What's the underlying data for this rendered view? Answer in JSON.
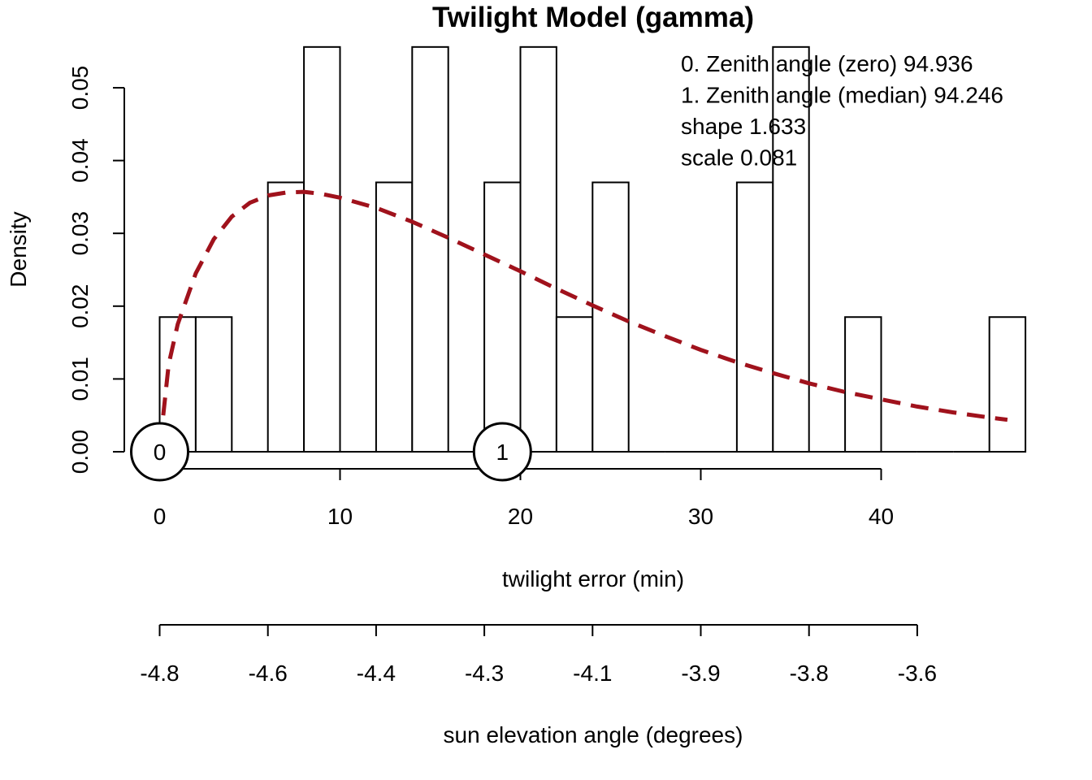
{
  "chart_data": {
    "type": "histogram",
    "title": "Twilight Model (gamma)",
    "ylabel": "Density",
    "xlabel": "twilight error (min)",
    "x2label": "sun elevation angle (degrees)",
    "xlim": [
      -2,
      48
    ],
    "ylim": [
      0,
      0.05
    ],
    "x_ticks": [
      0,
      10,
      20,
      30,
      40
    ],
    "x_tick_labels": [
      "0",
      "10",
      "20",
      "30",
      "40"
    ],
    "y_ticks": [
      0,
      0.01,
      0.02,
      0.03,
      0.04,
      0.05
    ],
    "y_tick_labels": [
      "0.00",
      "0.01",
      "0.02",
      "0.03",
      "0.04",
      "0.05"
    ],
    "x2_tick_positions": [
      0,
      6,
      12,
      18,
      24,
      30,
      36,
      42
    ],
    "x2_tick_labels": [
      "-4.8",
      "-4.6",
      "-4.4",
      "-4.3",
      "-4.1",
      "-3.9",
      "-3.8",
      "-3.6"
    ],
    "bins": [
      {
        "x0": 0,
        "x1": 2,
        "density": 0.0185
      },
      {
        "x0": 2,
        "x1": 4,
        "density": 0.0185
      },
      {
        "x0": 4,
        "x1": 6,
        "density": 0
      },
      {
        "x0": 6,
        "x1": 8,
        "density": 0.037
      },
      {
        "x0": 8,
        "x1": 10,
        "density": 0.0556
      },
      {
        "x0": 10,
        "x1": 12,
        "density": 0
      },
      {
        "x0": 12,
        "x1": 14,
        "density": 0.037
      },
      {
        "x0": 14,
        "x1": 16,
        "density": 0.0556
      },
      {
        "x0": 16,
        "x1": 18,
        "density": 0
      },
      {
        "x0": 18,
        "x1": 20,
        "density": 0.037
      },
      {
        "x0": 20,
        "x1": 22,
        "density": 0.0556
      },
      {
        "x0": 22,
        "x1": 24,
        "density": 0.0185
      },
      {
        "x0": 24,
        "x1": 26,
        "density": 0.037
      },
      {
        "x0": 26,
        "x1": 28,
        "density": 0
      },
      {
        "x0": 28,
        "x1": 30,
        "density": 0
      },
      {
        "x0": 30,
        "x1": 32,
        "density": 0
      },
      {
        "x0": 32,
        "x1": 34,
        "density": 0.037
      },
      {
        "x0": 34,
        "x1": 36,
        "density": 0.0556
      },
      {
        "x0": 36,
        "x1": 38,
        "density": 0
      },
      {
        "x0": 38,
        "x1": 40,
        "density": 0.0185
      },
      {
        "x0": 40,
        "x1": 42,
        "density": 0
      },
      {
        "x0": 42,
        "x1": 44,
        "density": 0
      },
      {
        "x0": 44,
        "x1": 46,
        "density": 0
      },
      {
        "x0": 46,
        "x1": 48,
        "density": 0.0185
      }
    ],
    "gamma_curve": {
      "shape": 1.633,
      "scale": 0.081,
      "x_from": 0.2,
      "x_to": 47,
      "color": "#a0121c",
      "style": "dashed",
      "points": [
        [
          0.2,
          0.005
        ],
        [
          0.5,
          0.012
        ],
        [
          1,
          0.0175
        ],
        [
          2,
          0.0245
        ],
        [
          3,
          0.0292
        ],
        [
          4,
          0.0323
        ],
        [
          5,
          0.0342
        ],
        [
          6,
          0.0352
        ],
        [
          7,
          0.0356
        ],
        [
          8,
          0.0357
        ],
        [
          9,
          0.0354
        ],
        [
          10,
          0.0349
        ],
        [
          12,
          0.0335
        ],
        [
          14,
          0.0316
        ],
        [
          16,
          0.0294
        ],
        [
          18,
          0.0271
        ],
        [
          20,
          0.0248
        ],
        [
          22,
          0.0224
        ],
        [
          24,
          0.0201
        ],
        [
          26,
          0.0179
        ],
        [
          28,
          0.0159
        ],
        [
          30,
          0.014
        ],
        [
          32,
          0.0123
        ],
        [
          34,
          0.0108
        ],
        [
          36,
          0.0094
        ],
        [
          38,
          0.0082
        ],
        [
          40,
          0.0072
        ],
        [
          42,
          0.0062
        ],
        [
          44,
          0.0054
        ],
        [
          46,
          0.0047
        ],
        [
          47,
          0.0044
        ]
      ]
    },
    "markers": [
      {
        "label": "0",
        "x": 0,
        "y": 0
      },
      {
        "label": "1",
        "x": 19,
        "y": 0
      }
    ],
    "annotations": [
      "0. Zenith angle (zero) 94.936",
      "1. Zenith angle (median) 94.246",
      "shape 1.633",
      "scale 0.081"
    ]
  }
}
